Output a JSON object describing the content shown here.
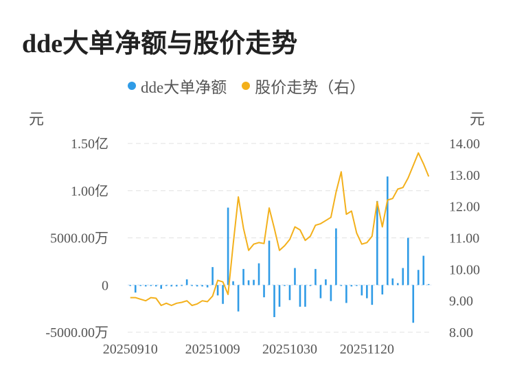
{
  "title": "dde大单净额与股价走势",
  "chart_data": {
    "type": "bar+line",
    "title": "dde大单净额与股价走势",
    "legend_position": "top",
    "grid": true,
    "y_left_unit": "元",
    "y_right_unit": "元",
    "y_left_ticks": [
      "-5000.00万",
      "0",
      "5000.00万",
      "1.00亿",
      "1.50亿"
    ],
    "y_left_lim": [
      -50000000,
      150000000
    ],
    "y_right_ticks": [
      "8.00",
      "9.00",
      "10.00",
      "11.00",
      "12.00",
      "13.00",
      "14.00"
    ],
    "y_right_lim": [
      8,
      14
    ],
    "x_ticks": [
      "20250910",
      "20251009",
      "20251030",
      "20251120"
    ],
    "x_tick_index": [
      0,
      16,
      31,
      46
    ],
    "series": [
      {
        "name": "dde大单净额",
        "type": "bar",
        "color": "#2f9be6",
        "values": [
          -1000000,
          -8000000,
          -1000000,
          -1500000,
          -1000000,
          -1500000,
          -4000000,
          -1000000,
          -1500000,
          -1500000,
          -1000000,
          6000000,
          -1000000,
          -1500000,
          -1500000,
          -2500000,
          19000000,
          -11000000,
          -20000000,
          82000000,
          4000000,
          -28000000,
          17000000,
          5000000,
          5500000,
          23000000,
          -13000000,
          47000000,
          -34000000,
          -23000000,
          -1000000,
          -16000000,
          18000000,
          -23000000,
          -23000000,
          -1000000,
          17000000,
          -14000000,
          6000000,
          -17000000,
          60000000,
          -1000000,
          -19000000,
          -1500000,
          -1000000,
          -11000000,
          -14000000,
          -21000000,
          89000000,
          -10000000,
          115000000,
          7000000,
          2000000,
          18000000,
          50000000,
          -40000000,
          16000000,
          31000000,
          1000000
        ]
      },
      {
        "name": "股价走势（右）",
        "type": "line",
        "color": "#f3b01b",
        "values": [
          9.1,
          9.1,
          9.05,
          9.0,
          9.1,
          9.08,
          8.85,
          8.92,
          8.85,
          8.92,
          8.95,
          9.0,
          8.85,
          8.9,
          9.0,
          8.97,
          9.15,
          9.65,
          9.6,
          9.2,
          10.8,
          12.3,
          11.3,
          10.6,
          10.8,
          10.85,
          10.82,
          11.95,
          11.3,
          10.6,
          10.75,
          10.95,
          11.35,
          11.25,
          10.92,
          11.05,
          11.4,
          11.45,
          11.55,
          11.65,
          12.45,
          13.1,
          11.75,
          11.85,
          11.15,
          10.8,
          10.85,
          11.05,
          12.15,
          11.35,
          12.2,
          12.25,
          12.55,
          12.6,
          12.9,
          13.3,
          13.7,
          13.35,
          12.95
        ]
      }
    ]
  }
}
